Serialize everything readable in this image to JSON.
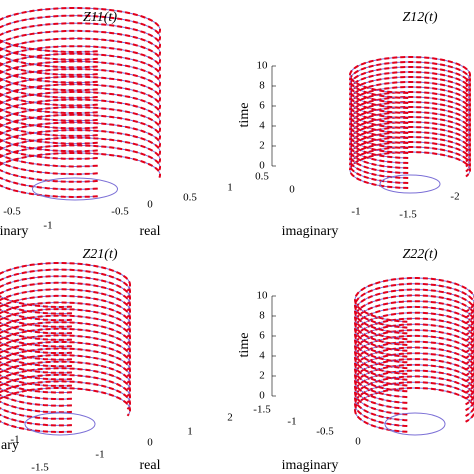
{
  "chart_data": [
    {
      "type": "helix3d",
      "title": "Z11(t)",
      "xlabel": "real",
      "ylabel": "inary",
      "xticks": [
        -0.5,
        0,
        0.5,
        1
      ],
      "yticks": [
        -0.5,
        -1
      ]
    },
    {
      "type": "helix3d",
      "title": "Z12(t)",
      "zlabel": "time",
      "xlabel": "imaginary",
      "zticks": [
        0,
        2,
        4,
        6,
        8,
        10
      ],
      "xticks": [
        0.5,
        0
      ],
      "yticks": [
        -1,
        -1.5,
        -2
      ]
    },
    {
      "type": "helix3d",
      "title": "Z21(t)",
      "xlabel": "real",
      "ylabel": "ary",
      "xticks": [
        -1,
        0,
        1,
        2
      ],
      "yticks": [
        -1,
        -1.5
      ]
    },
    {
      "type": "helix3d",
      "title": "Z22(t)",
      "zlabel": "time",
      "xlabel": "imaginary",
      "zticks": [
        0,
        2,
        4,
        6,
        8,
        10
      ],
      "xticks": [
        -1.5,
        -1,
        -0.5,
        0
      ]
    }
  ]
}
